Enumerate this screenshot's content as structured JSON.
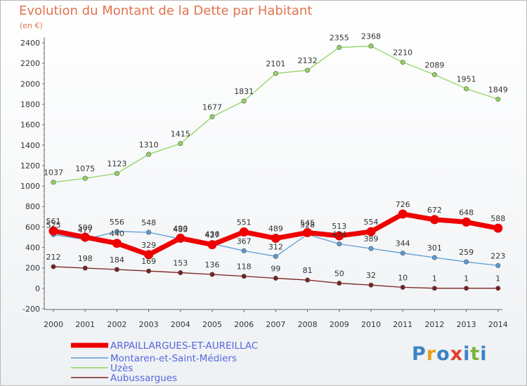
{
  "title": "Evolution du Montant de la Dette par Habitant",
  "unit": "(en €)",
  "logo": {
    "letters": [
      "P",
      "r",
      "o",
      "x",
      "i",
      "t",
      "i"
    ],
    "colors": [
      "#3b83c4",
      "#e8a21b",
      "#3b83c4",
      "#e23c2a",
      "#3b83c4",
      "#7ab43d",
      "#3b83c4"
    ]
  },
  "chart_data": {
    "type": "line",
    "title": "Evolution du Montant de la Dette par Habitant",
    "ylabel": "(en €)",
    "x": [
      "2000",
      "2001",
      "2002",
      "2003",
      "2004",
      "2005",
      "2006",
      "2007",
      "2008",
      "2009",
      "2010",
      "2011",
      "2012",
      "2013",
      "2014"
    ],
    "yticks": [
      "-200",
      "0",
      "200",
      "400",
      "600",
      "800",
      "1000",
      "1200",
      "1400",
      "1600",
      "1800",
      "2000",
      "2200",
      "2400"
    ],
    "ylim": [
      -200,
      2400
    ],
    "grid": false,
    "legend_position": "bottom-left",
    "series": [
      {
        "name": "ARPAILLARGUES-ET-AUREILLAC",
        "color": "#ee0000",
        "values": [
          561,
          500,
          440,
          329,
          490,
          427,
          551,
          489,
          545,
          513,
          554,
          726,
          672,
          648,
          588
        ]
      },
      {
        "name": "Montaren-et-Saint-Médiers",
        "color": "#5b9bd5",
        "values": [
          525,
          477,
          556,
          548,
          483,
          436,
          367,
          312,
          528,
          434,
          389,
          344,
          301,
          259,
          223
        ]
      },
      {
        "name": "Uzès",
        "color": "#8fd460",
        "values": [
          1037,
          1075,
          1123,
          1310,
          1415,
          1677,
          1831,
          2101,
          2132,
          2355,
          2368,
          2210,
          2089,
          1951,
          1849
        ]
      },
      {
        "name": "Aubussargues",
        "color": "#7a2020",
        "values": [
          212,
          198,
          184,
          169,
          153,
          136,
          118,
          99,
          81,
          50,
          32,
          10,
          1,
          1,
          1
        ]
      }
    ]
  }
}
